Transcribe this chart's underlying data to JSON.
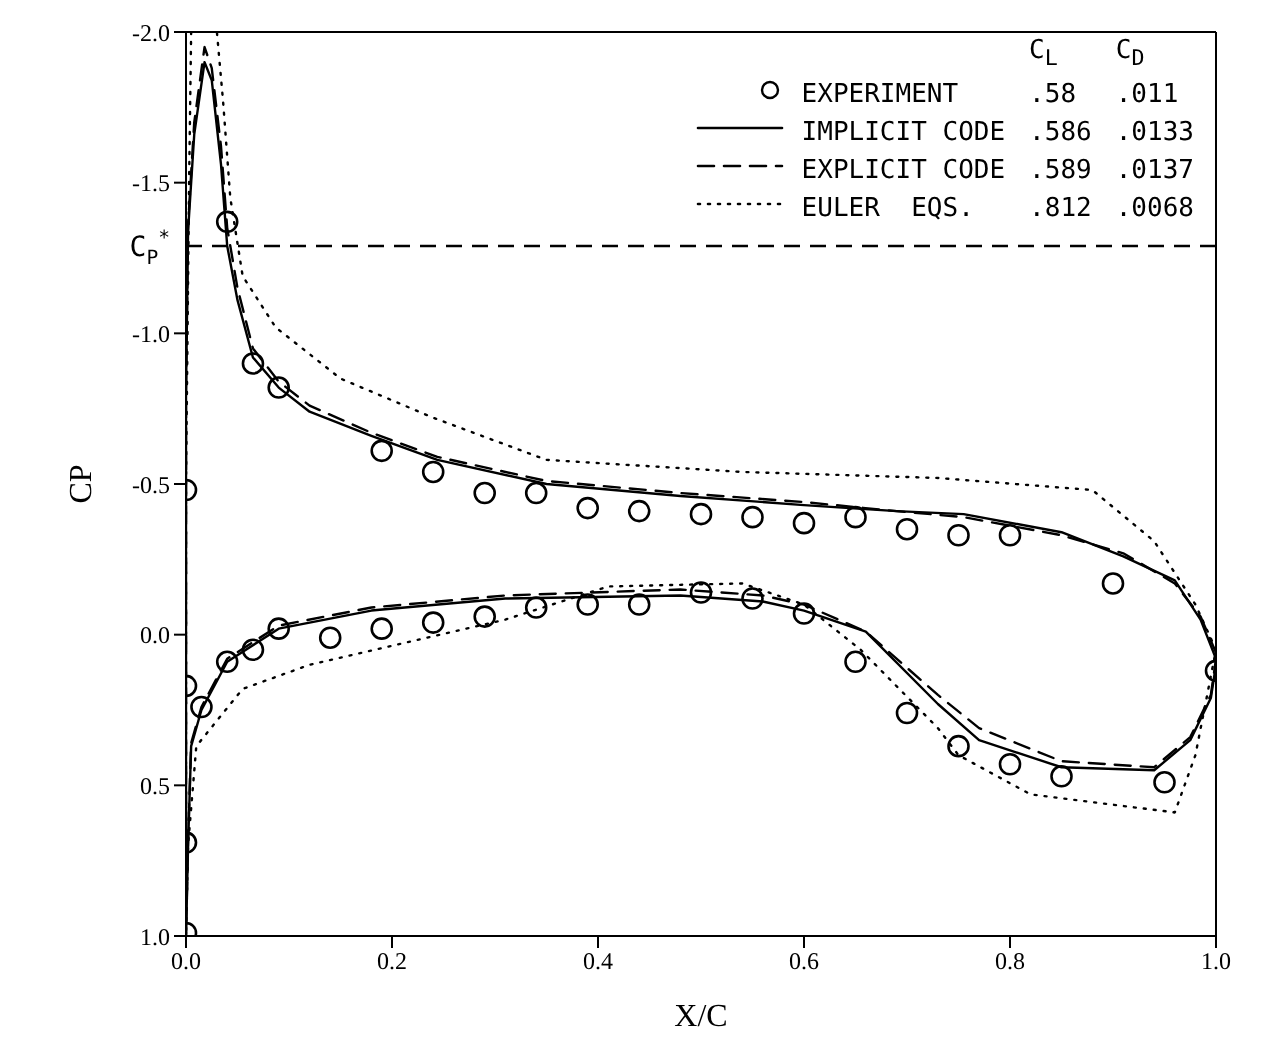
{
  "chart_data": {
    "type": "line",
    "xlabel": "X/C",
    "ylabel": "CP",
    "xlim": [
      0,
      1.0
    ],
    "xticks": [
      {
        "value": 0,
        "label": "0.0"
      },
      {
        "value": 0.2,
        "label": "0.2"
      },
      {
        "value": 0.4,
        "label": "0.4"
      },
      {
        "value": 0.6,
        "label": "0.6"
      },
      {
        "value": 0.8,
        "label": "0.8"
      },
      {
        "value": 1.0,
        "label": "1.0"
      }
    ],
    "ylim": [
      1.0,
      -2.0
    ],
    "yticks": [
      {
        "value": -2,
        "label": "-2.0"
      },
      {
        "value": -1.5,
        "label": "-1.5"
      },
      {
        "value": -1,
        "label": "-1.0"
      },
      {
        "value": -0.5,
        "label": "-0.5"
      },
      {
        "value": 0,
        "label": "0.0"
      },
      {
        "value": 0.5,
        "label": "0.5"
      },
      {
        "value": 1,
        "label": "1.0"
      }
    ],
    "legend": "top right",
    "annotations": [
      "C$_{L}$",
      "C$_{D}$",
      ".58",
      ".011",
      ".586",
      ".0133",
      ".589",
      ".0137",
      ".812",
      ".0068"
    ],
    "ref_lines": [
      {
        "axis": "y",
        "value": -1.29,
        "label": "C$_{P}$$^{*}$",
        "color": "#000000",
        "line_style": "dashed"
      }
    ],
    "series": [
      {
        "name": "EXPERIMENT",
        "type": "scatter",
        "marker": "circle",
        "color": "#000000",
        "x": [
          1.0,
          0.9,
          0.8,
          0.75,
          0.7,
          0.65,
          0.6,
          0.55,
          0.5,
          0.44,
          0.39,
          0.34,
          0.29,
          0.24,
          0.19,
          0.09,
          0.065,
          0.04,
          0.0,
          0.0,
          0.0,
          0.0,
          0.015,
          0.04,
          0.065,
          0.09,
          0.14,
          0.19,
          0.24,
          0.29,
          0.34,
          0.39,
          0.44,
          0.5,
          0.55,
          0.6,
          0.65,
          0.7,
          0.75,
          0.8,
          0.85,
          0.95
        ],
        "values": [
          0.12,
          -0.17,
          -0.33,
          -0.33,
          -0.35,
          -0.39,
          -0.37,
          -0.39,
          -0.4,
          -0.41,
          -0.42,
          -0.47,
          -0.47,
          -0.54,
          -0.61,
          -0.82,
          -0.9,
          -1.37,
          -0.48,
          0.17,
          0.69,
          0.99,
          0.24,
          0.09,
          0.05,
          -0.02,
          0.01,
          -0.02,
          -0.04,
          -0.06,
          -0.09,
          -0.1,
          -0.1,
          -0.14,
          -0.12,
          -0.07,
          0.09,
          0.26,
          0.37,
          0.43,
          0.47,
          0.49
        ]
      },
      {
        "name": "IMPLICIT CODE",
        "marker": "none",
        "line_style": "solid",
        "color": "#000000",
        "x": [
          1.0,
          0.985,
          0.96,
          0.91,
          0.85,
          0.755,
          0.69,
          0.6,
          0.48,
          0.35,
          0.244,
          0.18,
          0.12,
          0.09,
          0.065,
          0.05,
          0.04,
          0.034,
          0.025,
          0.018,
          0.008,
          0.002,
          0.0,
          0.0,
          0.002,
          0.005,
          0.015,
          0.04,
          0.09,
          0.18,
          0.31,
          0.48,
          0.56,
          0.6,
          0.66,
          0.73,
          0.77,
          0.85,
          0.94,
          0.975,
          0.995,
          1.0
        ],
        "values": [
          0.08,
          -0.05,
          -0.18,
          -0.26,
          -0.34,
          -0.4,
          -0.41,
          -0.43,
          -0.46,
          -0.5,
          -0.58,
          -0.66,
          -0.74,
          -0.82,
          -0.92,
          -1.11,
          -1.29,
          -1.56,
          -1.84,
          -1.9,
          -1.66,
          -1.34,
          -0.8,
          1.0,
          0.7,
          0.37,
          0.25,
          0.09,
          -0.02,
          -0.08,
          -0.12,
          -0.13,
          -0.11,
          -0.08,
          -0.01,
          0.23,
          0.35,
          0.44,
          0.45,
          0.35,
          0.21,
          0.1
        ]
      },
      {
        "name": "EXPLICIT CODE",
        "marker": "none",
        "line_style": "dashed",
        "color": "#000000",
        "x": [
          1.0,
          0.985,
          0.96,
          0.91,
          0.85,
          0.755,
          0.69,
          0.6,
          0.48,
          0.35,
          0.244,
          0.18,
          0.12,
          0.09,
          0.065,
          0.05,
          0.04,
          0.034,
          0.025,
          0.018,
          0.008,
          0.002,
          0.0,
          0.0,
          0.002,
          0.005,
          0.015,
          0.04,
          0.09,
          0.18,
          0.31,
          0.48,
          0.56,
          0.6,
          0.66,
          0.73,
          0.77,
          0.85,
          0.94,
          0.975,
          0.995,
          1.0
        ],
        "values": [
          0.06,
          -0.06,
          -0.17,
          -0.27,
          -0.33,
          -0.39,
          -0.41,
          -0.44,
          -0.47,
          -0.51,
          -0.59,
          -0.67,
          -0.76,
          -0.84,
          -0.95,
          -1.15,
          -1.35,
          -1.62,
          -1.88,
          -1.95,
          -1.7,
          -1.36,
          -0.8,
          1.0,
          0.68,
          0.36,
          0.24,
          0.08,
          -0.03,
          -0.09,
          -0.13,
          -0.15,
          -0.13,
          -0.1,
          -0.01,
          0.2,
          0.31,
          0.42,
          0.44,
          0.34,
          0.2,
          0.08
        ]
      },
      {
        "name": "EULER  EQS.",
        "marker": "none",
        "line_style": "dotted",
        "color": "#000000",
        "x": [
          1.0,
          0.98,
          0.94,
          0.88,
          0.73,
          0.54,
          0.35,
          0.24,
          0.15,
          0.087,
          0.055,
          0.043,
          0.036,
          0.03,
          0.02,
          0.005,
          0.003,
          0.0,
          0.0,
          0.002,
          0.01,
          0.055,
          0.12,
          0.31,
          0.41,
          0.54,
          0.6,
          0.655,
          0.73,
          0.75,
          0.82,
          0.96,
          0.98,
          1.0
        ],
        "values": [
          0.05,
          -0.1,
          -0.31,
          -0.48,
          -0.52,
          -0.54,
          -0.58,
          -0.72,
          -0.85,
          -1.02,
          -1.19,
          -1.45,
          -1.77,
          -2.0,
          null,
          -2.0,
          -1.5,
          -0.5,
          1.0,
          0.7,
          0.37,
          0.18,
          0.1,
          -0.05,
          -0.16,
          -0.17,
          -0.1,
          0.05,
          0.31,
          0.4,
          0.53,
          0.59,
          0.4,
          0.05
        ]
      }
    ]
  }
}
